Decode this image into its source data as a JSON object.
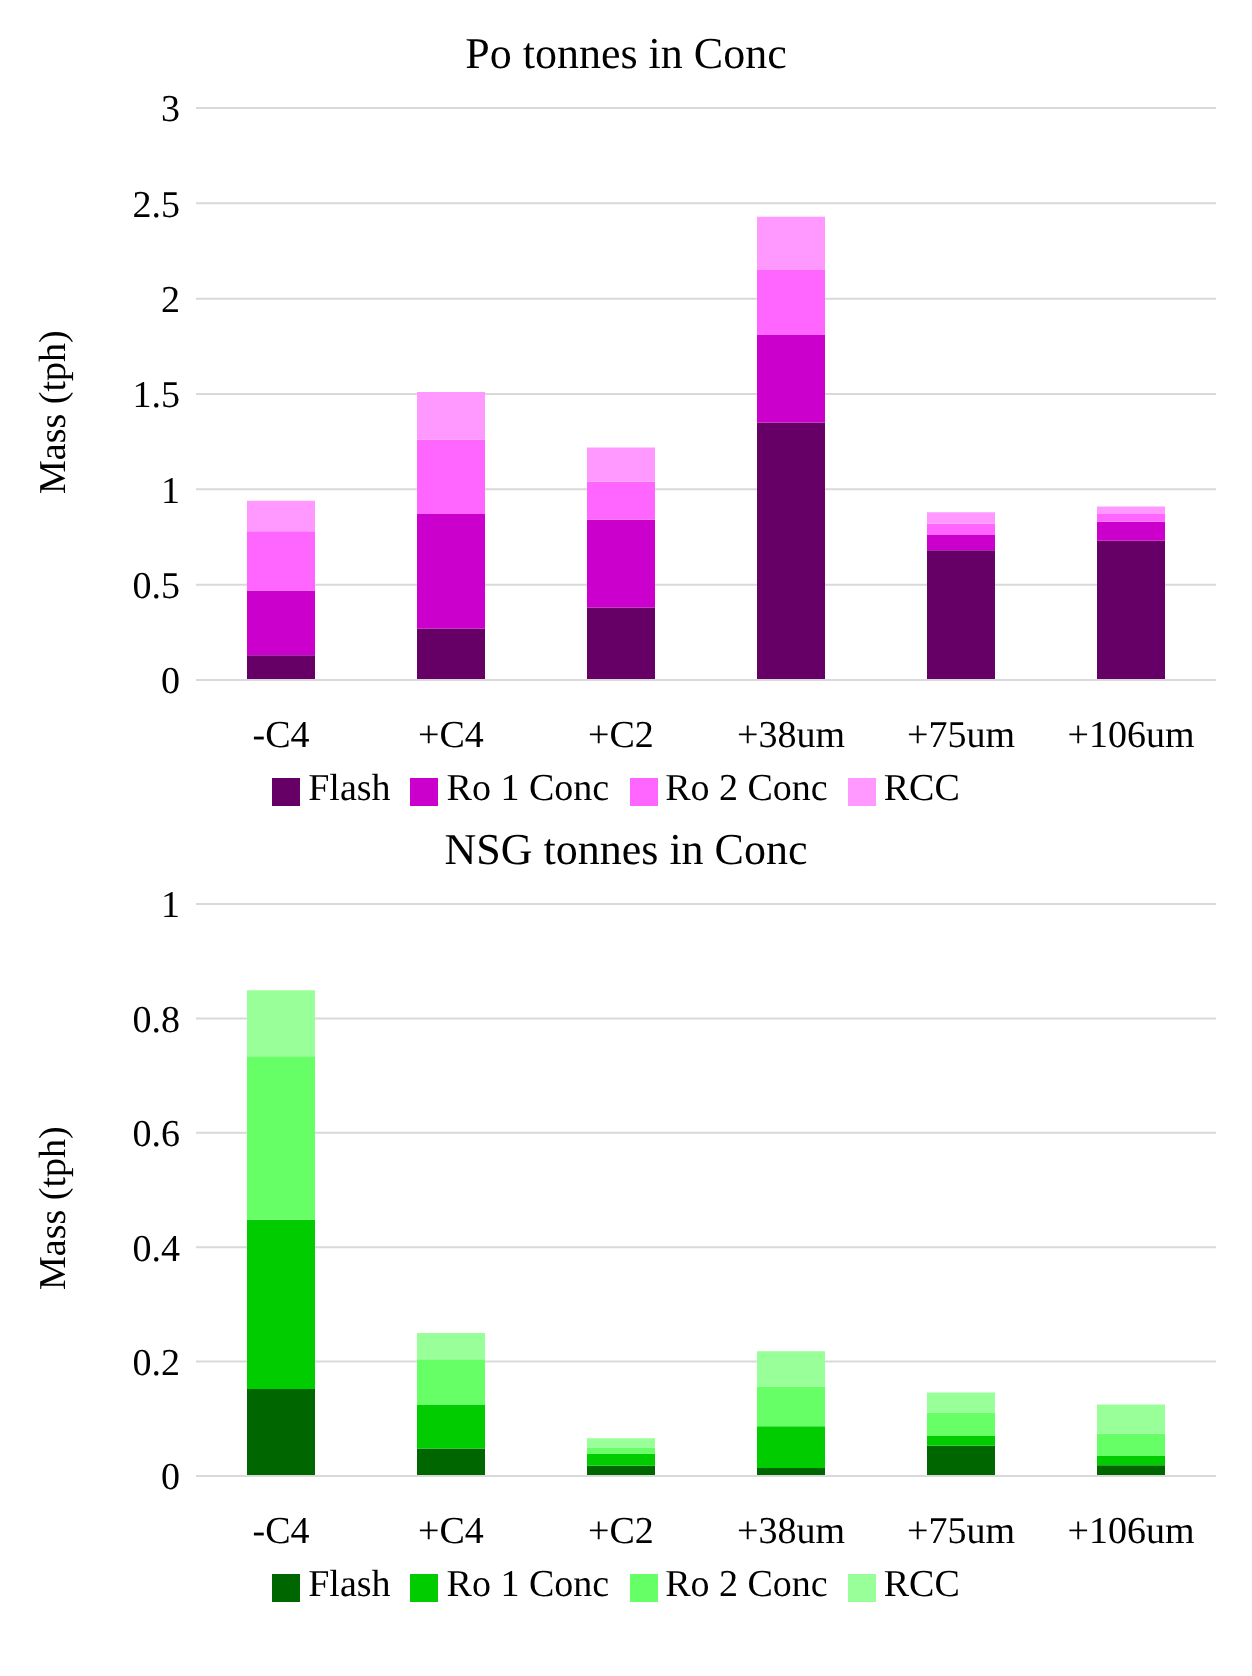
{
  "chart_data": [
    {
      "type": "bar",
      "title": "Po tonnes in Conc",
      "ylabel": "Mass (tph)",
      "categories": [
        "-C4",
        "+C4",
        "+C2",
        "+38um",
        "+75um",
        "+106um"
      ],
      "stacked": true,
      "ylim": [
        0,
        3
      ],
      "yticks": [
        0,
        0.5,
        1,
        1.5,
        2,
        2.5,
        3
      ],
      "grid": "y",
      "legend": "bottom",
      "series": [
        {
          "name": "Flash",
          "color": "#660066",
          "values": [
            0.13,
            0.27,
            0.38,
            1.35,
            0.68,
            0.73
          ]
        },
        {
          "name": "Ro 1 Conc",
          "color": "#cc00cc",
          "values": [
            0.34,
            0.6,
            0.46,
            0.46,
            0.08,
            0.1
          ]
        },
        {
          "name": "Ro 2 Conc",
          "color": "#ff66ff",
          "values": [
            0.31,
            0.39,
            0.2,
            0.34,
            0.06,
            0.04
          ]
        },
        {
          "name": "RCC",
          "color": "#ff99ff",
          "values": [
            0.16,
            0.25,
            0.18,
            0.28,
            0.06,
            0.04
          ]
        }
      ]
    },
    {
      "type": "bar",
      "title": "NSG tonnes in Conc",
      "ylabel": "Mass (tph)",
      "categories": [
        "-C4",
        "+C4",
        "+C2",
        "+38um",
        "+75um",
        "+106um"
      ],
      "stacked": true,
      "ylim": [
        0,
        1
      ],
      "yticks": [
        0,
        0.2,
        0.4,
        0.6,
        0.8,
        1
      ],
      "grid": "y",
      "legend": "bottom",
      "series": [
        {
          "name": "Flash",
          "color": "#006600",
          "values": [
            0.152,
            0.048,
            0.018,
            0.014,
            0.053,
            0.019
          ]
        },
        {
          "name": "Ro 1 Conc",
          "color": "#00cc00",
          "values": [
            0.296,
            0.077,
            0.021,
            0.073,
            0.018,
            0.016
          ]
        },
        {
          "name": "Ro 2 Conc",
          "color": "#66ff66",
          "values": [
            0.286,
            0.079,
            0.011,
            0.069,
            0.04,
            0.039
          ]
        },
        {
          "name": "RCC",
          "color": "#99ff99",
          "values": [
            0.115,
            0.046,
            0.016,
            0.062,
            0.035,
            0.051
          ]
        }
      ]
    }
  ]
}
